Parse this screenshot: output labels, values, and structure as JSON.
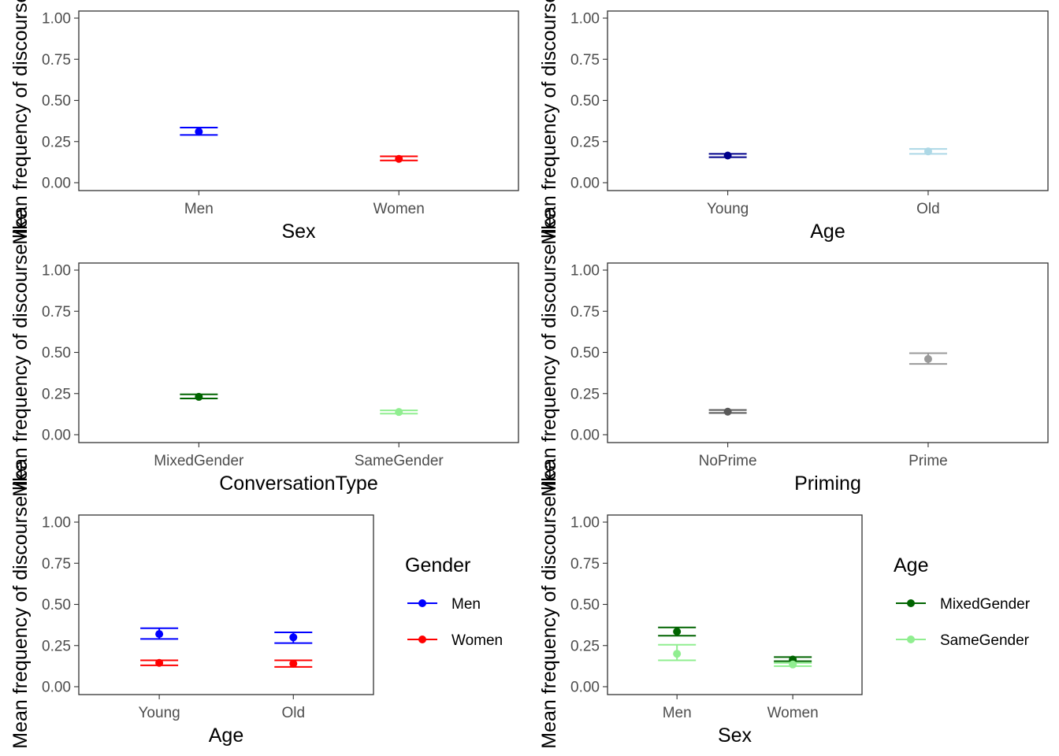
{
  "chart_data": [
    {
      "type": "scatter",
      "subtype": "point-errorbar",
      "title": "",
      "xlabel": "Sex",
      "ylabel": "Mean frequency of discourse like",
      "categories": [
        "Men",
        "Women"
      ],
      "ylim": [
        0,
        1
      ],
      "yticks": [
        "0.00",
        "0.25",
        "0.50",
        "0.75",
        "1.00"
      ],
      "grid": true,
      "series": [
        {
          "values": [
            0.31,
            0.145
          ],
          "lower": [
            0.29,
            0.135
          ],
          "upper": [
            0.335,
            0.16
          ],
          "colors": [
            "#0000FF",
            "#FF0000"
          ]
        }
      ]
    },
    {
      "type": "scatter",
      "subtype": "point-errorbar",
      "title": "",
      "xlabel": "Age",
      "ylabel": "Mean frequency of discourse like",
      "categories": [
        "Young",
        "Old"
      ],
      "ylim": [
        0,
        1
      ],
      "yticks": [
        "0.00",
        "0.25",
        "0.50",
        "0.75",
        "1.00"
      ],
      "grid": true,
      "series": [
        {
          "values": [
            0.165,
            0.19
          ],
          "lower": [
            0.155,
            0.175
          ],
          "upper": [
            0.175,
            0.205
          ],
          "colors": [
            "#00008B",
            "#ADD8E6"
          ]
        }
      ]
    },
    {
      "type": "scatter",
      "subtype": "point-errorbar",
      "title": "",
      "xlabel": "ConversationType",
      "ylabel": "Mean frequency of discourse like",
      "categories": [
        "MixedGender",
        "SameGender"
      ],
      "ylim": [
        0,
        1
      ],
      "yticks": [
        "0.00",
        "0.25",
        "0.50",
        "0.75",
        "1.00"
      ],
      "grid": true,
      "series": [
        {
          "values": [
            0.23,
            0.138
          ],
          "lower": [
            0.22,
            0.128
          ],
          "upper": [
            0.245,
            0.148
          ],
          "colors": [
            "#006400",
            "#90EE90"
          ]
        }
      ]
    },
    {
      "type": "scatter",
      "subtype": "point-errorbar",
      "title": "",
      "xlabel": "Priming",
      "ylabel": "Mean frequency of discourse like",
      "categories": [
        "NoPrime",
        "Prime"
      ],
      "ylim": [
        0,
        1
      ],
      "yticks": [
        "0.00",
        "0.25",
        "0.50",
        "0.75",
        "1.00"
      ],
      "grid": true,
      "series": [
        {
          "values": [
            0.14,
            0.46
          ],
          "lower": [
            0.132,
            0.43
          ],
          "upper": [
            0.15,
            0.495
          ],
          "colors": [
            "#595959",
            "#999999"
          ]
        }
      ]
    },
    {
      "type": "scatter",
      "subtype": "point-errorbar",
      "title": "",
      "xlabel": "Age",
      "ylabel": "Mean frequency of discourse like",
      "categories": [
        "Young",
        "Old"
      ],
      "ylim": [
        0,
        1
      ],
      "yticks": [
        "0.00",
        "0.25",
        "0.50",
        "0.75",
        "1.00"
      ],
      "grid": true,
      "legend": {
        "title": "Gender",
        "placement": "right"
      },
      "series": [
        {
          "name": "Men",
          "color": "#0000FF",
          "values": [
            0.32,
            0.3
          ],
          "lower": [
            0.29,
            0.265
          ],
          "upper": [
            0.355,
            0.33
          ]
        },
        {
          "name": "Women",
          "color": "#FF0000",
          "values": [
            0.145,
            0.14
          ],
          "lower": [
            0.13,
            0.12
          ],
          "upper": [
            0.16,
            0.16
          ]
        }
      ]
    },
    {
      "type": "scatter",
      "subtype": "point-errorbar",
      "title": "",
      "xlabel": "Sex",
      "ylabel": "Mean frequency of discourse like",
      "categories": [
        "Men",
        "Women"
      ],
      "ylim": [
        0,
        1
      ],
      "yticks": [
        "0.00",
        "0.25",
        "0.50",
        "0.75",
        "1.00"
      ],
      "grid": true,
      "legend": {
        "title": "Age",
        "placement": "right"
      },
      "series": [
        {
          "name": "MixedGender",
          "color": "#006400",
          "values": [
            0.335,
            0.165
          ],
          "lower": [
            0.31,
            0.155
          ],
          "upper": [
            0.36,
            0.18
          ]
        },
        {
          "name": "SameGender",
          "color": "#90EE90",
          "values": [
            0.2,
            0.135
          ],
          "lower": [
            0.16,
            0.125
          ],
          "upper": [
            0.255,
            0.145
          ]
        }
      ]
    }
  ]
}
